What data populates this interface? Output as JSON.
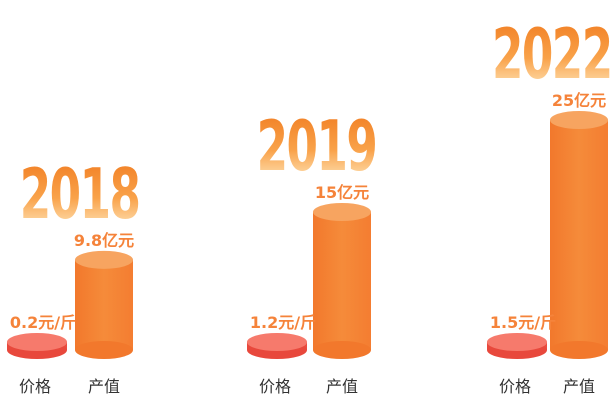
{
  "chart_data": {
    "type": "bar",
    "title": "",
    "categories": [
      "价格",
      "产值"
    ],
    "groups": [
      {
        "year": "2018",
        "price": 0.2,
        "price_label": "0.2元/斤",
        "output": 9.8,
        "output_label": "9.8亿元"
      },
      {
        "year": "2019",
        "price": 1.2,
        "price_label": "1.2元/斤",
        "output": 15,
        "output_label": "15亿元"
      },
      {
        "year": "2022",
        "price": 1.5,
        "price_label": "1.5元/斤",
        "output": 25,
        "output_label": "25亿元"
      }
    ],
    "units": {
      "price": "元/斤",
      "output": "亿元"
    },
    "colors": {
      "price_bar": "#f0584a",
      "output_bar": "#f58b3a",
      "year_text_top": "#f07a1e",
      "year_text_bottom": "#ffe7b8",
      "label_text": "#f5833a",
      "category_text": "#333333"
    },
    "grid": false,
    "legend": "none"
  }
}
